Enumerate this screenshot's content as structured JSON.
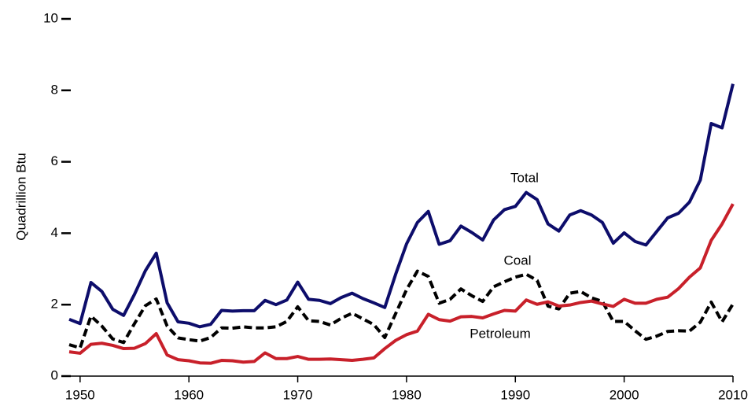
{
  "chart_data": {
    "type": "line",
    "y_label": "Quadrillion Btu",
    "x": [
      1949,
      1950,
      1951,
      1952,
      1953,
      1954,
      1955,
      1956,
      1957,
      1958,
      1959,
      1960,
      1961,
      1962,
      1963,
      1964,
      1965,
      1966,
      1967,
      1968,
      1969,
      1970,
      1971,
      1972,
      1973,
      1974,
      1975,
      1976,
      1977,
      1978,
      1979,
      1980,
      1981,
      1982,
      1983,
      1984,
      1985,
      1986,
      1987,
      1988,
      1989,
      1990,
      1991,
      1992,
      1993,
      1994,
      1995,
      1996,
      1997,
      1998,
      1999,
      2000,
      2001,
      2002,
      2003,
      2004,
      2005,
      2006,
      2007,
      2008,
      2009,
      2010
    ],
    "series": [
      {
        "name": "Total",
        "color": "#0d0d6b",
        "dashed": false,
        "values": [
          1.59,
          1.47,
          2.62,
          2.37,
          1.87,
          1.7,
          2.29,
          2.95,
          3.44,
          2.05,
          1.52,
          1.48,
          1.38,
          1.45,
          1.84,
          1.82,
          1.83,
          1.83,
          2.12,
          2.0,
          2.13,
          2.63,
          2.15,
          2.12,
          2.03,
          2.2,
          2.32,
          2.17,
          2.05,
          1.92,
          2.85,
          3.7,
          4.3,
          4.61,
          3.69,
          3.79,
          4.2,
          4.02,
          3.81,
          4.37,
          4.66,
          4.75,
          5.14,
          4.94,
          4.26,
          4.06,
          4.51,
          4.63,
          4.51,
          4.3,
          3.72,
          4.01,
          3.77,
          3.67,
          4.05,
          4.43,
          4.56,
          4.87,
          5.49,
          7.07,
          6.95,
          8.18
        ]
      },
      {
        "name": "Coal",
        "color": "#000000",
        "dashed": true,
        "values": [
          0.88,
          0.79,
          1.68,
          1.4,
          1.04,
          0.94,
          1.47,
          1.97,
          2.16,
          1.4,
          1.07,
          1.02,
          0.98,
          1.08,
          1.35,
          1.34,
          1.38,
          1.35,
          1.35,
          1.38,
          1.53,
          1.94,
          1.55,
          1.53,
          1.43,
          1.62,
          1.76,
          1.6,
          1.44,
          1.08,
          1.75,
          2.42,
          2.94,
          2.79,
          2.04,
          2.15,
          2.44,
          2.25,
          2.09,
          2.5,
          2.64,
          2.77,
          2.85,
          2.68,
          1.96,
          1.88,
          2.32,
          2.37,
          2.19,
          2.09,
          1.53,
          1.53,
          1.27,
          1.03,
          1.12,
          1.25,
          1.27,
          1.26,
          1.51,
          2.07,
          1.52,
          2.02
        ]
      },
      {
        "name": "Petroleum",
        "color": "#c8202a",
        "dashed": false,
        "values": [
          0.68,
          0.64,
          0.89,
          0.92,
          0.86,
          0.77,
          0.78,
          0.91,
          1.19,
          0.59,
          0.46,
          0.43,
          0.37,
          0.36,
          0.44,
          0.43,
          0.39,
          0.41,
          0.65,
          0.49,
          0.49,
          0.55,
          0.47,
          0.47,
          0.48,
          0.46,
          0.44,
          0.47,
          0.51,
          0.77,
          1.0,
          1.16,
          1.26,
          1.73,
          1.58,
          1.54,
          1.66,
          1.67,
          1.63,
          1.74,
          1.84,
          1.82,
          2.13,
          2.01,
          2.08,
          1.96,
          1.99,
          2.06,
          2.1,
          2.02,
          1.95,
          2.15,
          2.04,
          2.04,
          2.15,
          2.21,
          2.45,
          2.77,
          3.03,
          3.8,
          4.26,
          4.82
        ]
      }
    ],
    "xlim": [
      1949,
      2010
    ],
    "xticks": [
      1950,
      1960,
      1970,
      1980,
      1990,
      2000,
      2010
    ],
    "ylim": [
      0,
      10
    ],
    "yticks": [
      0,
      2,
      4,
      6,
      8,
      10
    ]
  }
}
